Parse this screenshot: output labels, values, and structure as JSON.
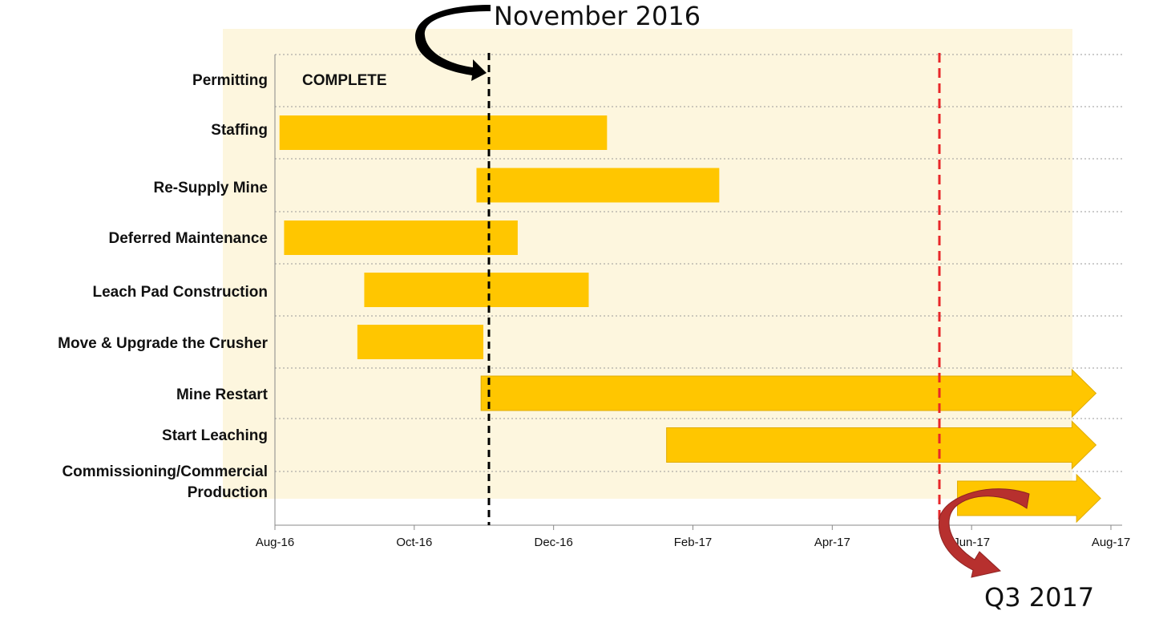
{
  "chart_data": {
    "type": "gantt",
    "title": "",
    "xlabel": "",
    "ylabel": "",
    "x_ticks": [
      "Aug-16",
      "Oct-16",
      "Dec-16",
      "Feb-17",
      "Apr-17",
      "Jun-17",
      "Aug-17"
    ],
    "x_range": [
      "2016-08-01",
      "2017-08-01"
    ],
    "grid": "horizontal dotted",
    "tasks": [
      {
        "name": "Permitting",
        "status": "COMPLETE"
      },
      {
        "name": "Staffing",
        "start": "2016-08-03",
        "end": "2016-12-24"
      },
      {
        "name": "Re-Supply Mine",
        "start": "2016-10-28",
        "end": "2017-02-11"
      },
      {
        "name": "Deferred Maintenance",
        "start": "2016-08-05",
        "end": "2016-11-15"
      },
      {
        "name": "Leach Pad Construction",
        "start": "2016-09-09",
        "end": "2016-12-16"
      },
      {
        "name": "Move & Upgrade  the Crusher",
        "start": "2016-09-06",
        "end": "2016-10-31"
      },
      {
        "name": "Mine Restart",
        "start": "2016-10-30",
        "end": "2017-07-15",
        "ongoing": true
      },
      {
        "name": "Start Leaching",
        "start": "2017-01-19",
        "end": "2017-07-15",
        "ongoing": true
      },
      {
        "name": "Commissioning/Commercial Production",
        "start": "2017-05-26",
        "end": "2017-07-17",
        "ongoing": true
      }
    ],
    "markers": [
      {
        "label": "November 2016",
        "date": "2016-10-28",
        "style": "black dashed"
      },
      {
        "label": "Q3 2017",
        "date": "2017-05-25",
        "style": "red dashed"
      }
    ]
  },
  "colors": {
    "bar": "#ffc600",
    "background": "#fdf6de",
    "current_line": "#000000",
    "target_line": "#e8272a",
    "target_arrow": "#b7302e"
  }
}
